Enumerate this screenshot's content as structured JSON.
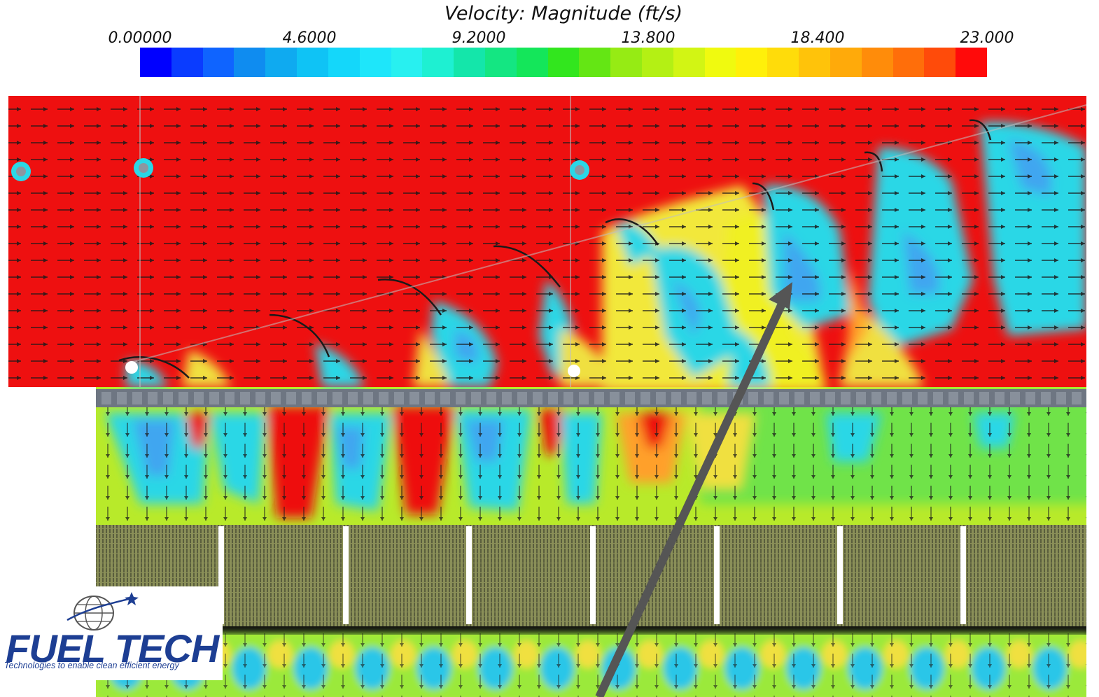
{
  "legend": {
    "title": "Velocity: Magnitude (ft/s)",
    "ticks": [
      "0.00000",
      "4.6000",
      "9.2000",
      "13.800",
      "18.400",
      "23.000"
    ],
    "min": 0,
    "max": 23,
    "colors": [
      "#0000ff",
      "#0a3cff",
      "#0f64ff",
      "#0f8cf0",
      "#0faaf0",
      "#0fc3f5",
      "#14d7fa",
      "#1ee6fa",
      "#28f0f0",
      "#1ef0d2",
      "#14e6aa",
      "#14e682",
      "#14e65a",
      "#32e61e",
      "#64e614",
      "#96eb14",
      "#b4f014",
      "#d2f514",
      "#f0fa0f",
      "#fff00a",
      "#ffdc0a",
      "#ffc30a",
      "#ffaa0a",
      "#ff8c0a",
      "#ff6e0a",
      "#ff4b0a",
      "#ff0a0a"
    ]
  },
  "logo": {
    "name": "FUEL TECH",
    "tagline": "Technologies to enable clean efficient energy"
  }
}
